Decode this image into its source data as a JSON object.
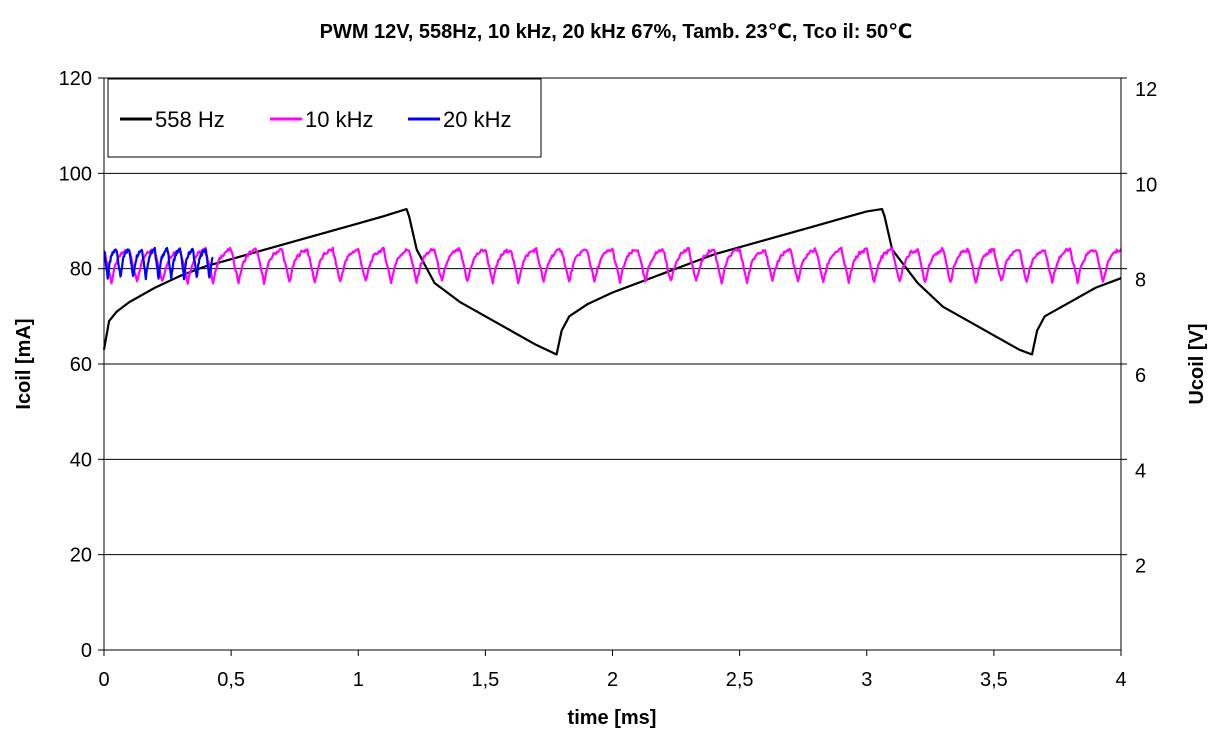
{
  "chart_data": {
    "type": "line",
    "title": "PWM 12V, 558Hz, 10 kHz, 20 kHz 67%, Tamb. 23℃, Tco il: 50℃",
    "xlabel": "time [ms]",
    "ylabel": "Icoil [mA]",
    "y2label": "Ucoil [V]",
    "xlim": [
      0,
      4
    ],
    "ylim": [
      0,
      120
    ],
    "y2lim": [
      0,
      12
    ],
    "x_ticks": [
      "0",
      "0,5",
      "1",
      "1,5",
      "2",
      "2,5",
      "3",
      "3,5",
      "4"
    ],
    "x_tick_values": [
      0,
      0.5,
      1,
      1.5,
      2,
      2.5,
      3,
      3.5,
      4
    ],
    "y_ticks": [
      "0",
      "20",
      "40",
      "60",
      "80",
      "100",
      "120"
    ],
    "y_tick_values": [
      0,
      20,
      40,
      60,
      80,
      100,
      120
    ],
    "y2_ticks": [
      "2",
      "4",
      "6",
      "8",
      "10",
      "12"
    ],
    "y2_tick_values": [
      2,
      4,
      6,
      8,
      10,
      12
    ],
    "grid": "horizontal",
    "legend_position": "top-left",
    "series": [
      {
        "name": "558 Hz",
        "color": "#000000",
        "x": [
          0,
          0.02,
          0.05,
          0.1,
          0.2,
          0.3,
          0.4,
          0.5,
          0.6,
          0.7,
          0.8,
          0.9,
          1.0,
          1.1,
          1.19,
          1.2,
          1.23,
          1.3,
          1.4,
          1.5,
          1.6,
          1.7,
          1.78,
          1.8,
          1.83,
          1.9,
          2.0,
          2.1,
          2.2,
          2.3,
          2.4,
          2.5,
          2.6,
          2.7,
          2.8,
          2.9,
          3.0,
          3.06,
          3.07,
          3.1,
          3.2,
          3.3,
          3.4,
          3.5,
          3.6,
          3.65,
          3.67,
          3.7,
          3.8,
          3.9,
          4.0
        ],
        "values": [
          63,
          69,
          71,
          73,
          76,
          78.5,
          80.5,
          82,
          83.5,
          85,
          86.5,
          88,
          89.5,
          91,
          92.5,
          91,
          84,
          77,
          73,
          70,
          67,
          64,
          62,
          67,
          70,
          72.5,
          75,
          77,
          79,
          81,
          83,
          84.5,
          86,
          87.5,
          89,
          90.5,
          92,
          92.5,
          91,
          84,
          77,
          72,
          69,
          66,
          63,
          62,
          67,
          70,
          73,
          76,
          78
        ]
      },
      {
        "name": "10 kHz",
        "color": "#ff00ff",
        "x_start": 0,
        "x_end": 4,
        "period": 0.1,
        "values_range": [
          77,
          84
        ]
      },
      {
        "name": "20 kHz",
        "color": "#0000ff",
        "x_start": 0,
        "x_end": 0.43,
        "period": 0.05,
        "values_range": [
          78,
          84
        ]
      }
    ]
  }
}
